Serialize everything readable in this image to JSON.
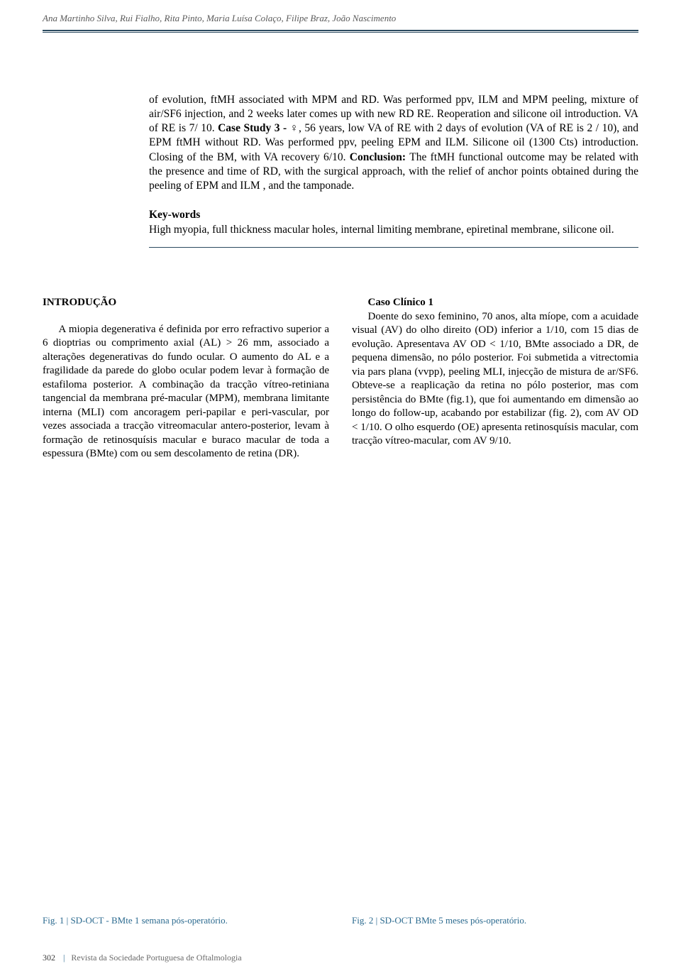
{
  "header": {
    "authors": "Ana Martinho Silva, Rui Fialho, Rita Pinto, Maria Luísa Colaço, Filipe Braz, João Nascimento"
  },
  "abstract": {
    "part1": "of evolution, ftMH associated with MPM and RD. Was performed ppv, ILM and MPM peeling, mixture of air/SF6 injection, and 2 weeks later comes up with new RD RE. Reoperation and silicone oil introduction. VA of RE is 7/ 10. ",
    "bold1": "Case Study 3 - ",
    "part2": "♀, 56 years, low VA of RE with 2 days of evolution (VA of RE is 2 / 10), and EPM ftMH without RD. Was performed ppv, peeling EPM and ILM. Silicone oil (1300 Cts) introduction. Closing of the BM, with VA recovery 6/10. ",
    "bold2": "Conclusion: ",
    "part3": "The ftMH functional outcome may be related with the presence and time of RD, with the surgical approach, with the relief of anchor points obtained during the peeling of EPM and ILM , and the tamponade."
  },
  "keywords": {
    "title": "Key-words",
    "text": "High myopia, full thickness macular holes, internal limiting membrane, epiretinal membrane, silicone oil."
  },
  "intro": {
    "title": "INTRODUÇÃO",
    "text": "A miopia degenerativa é definida por erro refractivo superior a 6 dioptrias ou comprimento axial (AL) > 26 mm, associado a alterações degenerativas do fundo ocular. O aumento do AL e a fragilidade da parede do globo ocular podem levar à formação de estafiloma posterior. A combinação da tracção vítreo-retiniana tangencial da membrana pré-macular (MPM), membrana limitante interna (MLI) com ancoragem peri-papilar e peri-vascular, por vezes associada a tracção vitreomacular antero-posterior, levam à formação de retinosquísis macular e buraco macular de toda a espessura (BMte) com ou sem descolamento de retina (DR)."
  },
  "case1": {
    "title": "Caso Clínico 1",
    "text": "Doente do sexo feminino, 70 anos, alta míope, com a acuidade visual (AV) do olho direito (OD) inferior a 1/10, com 15 dias de evolução. Apresentava AV OD < 1/10, BMte associado a DR, de pequena dimensão, no pólo posterior. Foi submetida a vitrectomia via pars plana (vvpp), peeling MLI, injecção de mistura de ar/SF6. Obteve-se a reaplicação da retina no pólo posterior, mas com persistência do BMte (fig.1), que foi aumentando em dimensão ao longo do follow-up, acabando por estabilizar (fig. 2), com AV OD < 1/10. O olho esquerdo (OE) apresenta retinosquísis macular, com tracção vítreo-macular, com AV 9/10."
  },
  "figures": {
    "fig1": {
      "label": "Fig. 1",
      "bar": "|",
      "text": "SD-OCT - BMte 1 semana pós-operatório."
    },
    "fig2": {
      "label": "Fig. 2",
      "bar": "|",
      "text": "SD-OCT BMte 5 meses pós-operatório."
    }
  },
  "footer": {
    "pagenum": "302",
    "bar": "|",
    "journal": "Revista da Sociedade Portuguesa de Oftalmologia"
  }
}
